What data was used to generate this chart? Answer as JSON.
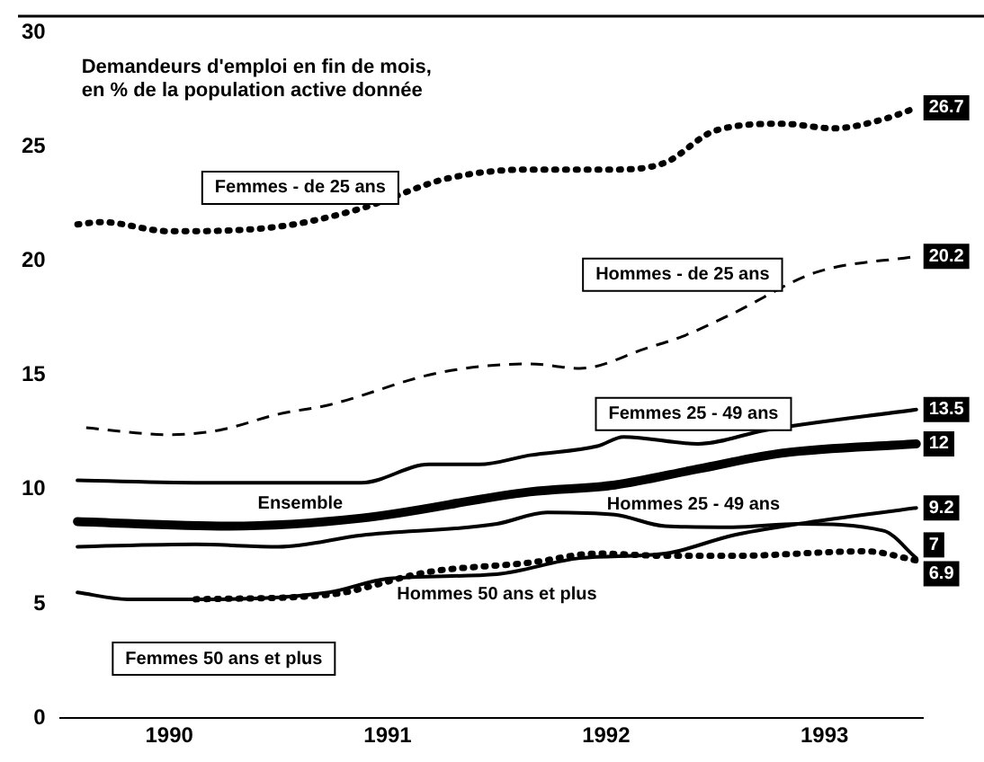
{
  "chart_data": {
    "type": "line",
    "title": "Demandeurs d'emploi en fin de mois,\nen % de la population active donnée",
    "xlim": [
      1989.5,
      1993.45
    ],
    "xticks": [
      1990,
      1991,
      1992,
      1993
    ],
    "ylim": [
      0,
      30
    ],
    "yticks": [
      0,
      5,
      10,
      15,
      20,
      25,
      30
    ],
    "grid": false,
    "legend": false,
    "marker": "none",
    "series": [
      {
        "name": "Femmes - de 25 ans",
        "color": "#000000",
        "line_style": "dotted",
        "x": [
          1989.58,
          1989.69,
          1990,
          1990.5,
          1990.88,
          1991.27,
          1991.65,
          1992.04,
          1992.27,
          1992.5,
          1992.81,
          1993.04,
          1993.27,
          1993.42
        ],
        "values": [
          21.6,
          21.7,
          21.3,
          21.5,
          22.3,
          23.6,
          24,
          24,
          24.3,
          25.7,
          26,
          25.8,
          26.2,
          26.7
        ],
        "value_labels": [
          null,
          null,
          null,
          null,
          null,
          null,
          null,
          null,
          null,
          null,
          null,
          null,
          null,
          "26.7"
        ]
      },
      {
        "name": "Hommes - de 25 ans",
        "color": "#000000",
        "line_style": "dashed",
        "x": [
          1989.62,
          1990,
          1990.23,
          1990.5,
          1990.73,
          1991.23,
          1991.65,
          1991.88,
          1992.19,
          1992.35,
          1992.58,
          1992.96,
          1993.42
        ],
        "values": [
          12.7,
          12.4,
          12.6,
          13.3,
          13.7,
          15.1,
          15.5,
          15.3,
          16.2,
          16.7,
          17.7,
          19.5,
          20.2
        ],
        "value_labels": [
          null,
          null,
          null,
          null,
          null,
          null,
          null,
          null,
          null,
          null,
          null,
          null,
          "20.2"
        ]
      },
      {
        "name": "Ensemble",
        "color": "#000000",
        "line_style": "solid",
        "x": [
          1989.58,
          1990.27,
          1990.88,
          1991.65,
          1992.04,
          1992.42,
          1992.81,
          1993.42
        ],
        "values": [
          8.6,
          8.4,
          8.75,
          9.9,
          10.2,
          10.9,
          11.6,
          12
        ],
        "value_labels": [
          null,
          null,
          null,
          null,
          null,
          null,
          null,
          "12"
        ]
      },
      {
        "name": "Femmes 25 - 49 ans",
        "color": "#000000",
        "line_style": "solid",
        "x": [
          1989.58,
          1990.19,
          1990.88,
          1991.19,
          1991.42,
          1991.65,
          1991.96,
          1992.08,
          1992.42,
          1992.73,
          1993.42
        ],
        "values": [
          10.4,
          10.3,
          10.3,
          11.1,
          11.1,
          11.5,
          11.9,
          12.3,
          12,
          12.6,
          13.5
        ],
        "value_labels": [
          null,
          null,
          null,
          null,
          null,
          null,
          null,
          null,
          null,
          null,
          "13.5"
        ]
      },
      {
        "name": "Hommes 25 - 49 ans",
        "color": "#000000",
        "line_style": "solid",
        "x": [
          1989.58,
          1990.12,
          1990.5,
          1990.88,
          1991.5,
          1991.73,
          1992.04,
          1992.27,
          1992.58,
          1992.88,
          1993.27,
          1993.42
        ],
        "values": [
          7.5,
          7.6,
          7.5,
          8,
          8.5,
          9,
          8.9,
          8.4,
          8.35,
          8.5,
          8.2,
          7
        ],
        "value_labels": [
          null,
          null,
          null,
          null,
          null,
          null,
          null,
          null,
          null,
          null,
          null,
          "7"
        ]
      },
      {
        "name": "Hommes 50 ans et plus",
        "color": "#000000",
        "line_style": "solid",
        "x": [
          1989.58,
          1989.81,
          1990.12,
          1990.73,
          1991,
          1991.5,
          1991.88,
          1992.27,
          1992.58,
          1992.88,
          1993.42
        ],
        "values": [
          5.5,
          5.2,
          5.2,
          5.5,
          6.1,
          6.3,
          7,
          7.2,
          8,
          8.5,
          9.2
        ],
        "value_labels": [
          null,
          null,
          null,
          null,
          null,
          null,
          null,
          null,
          null,
          null,
          "9.2"
        ]
      },
      {
        "name": "Femmes 50 ans et plus",
        "color": "#000000",
        "line_style": "dotted",
        "x": [
          1990.12,
          1990.73,
          1991.19,
          1991.65,
          1991.96,
          1992.27,
          1992.58,
          1993.19,
          1993.42
        ],
        "values": [
          5.2,
          5.4,
          6.4,
          6.8,
          7.2,
          7.1,
          7.1,
          7.3,
          6.9
        ],
        "value_labels": [
          null,
          null,
          null,
          null,
          null,
          null,
          null,
          null,
          "6.9"
        ]
      }
    ]
  }
}
